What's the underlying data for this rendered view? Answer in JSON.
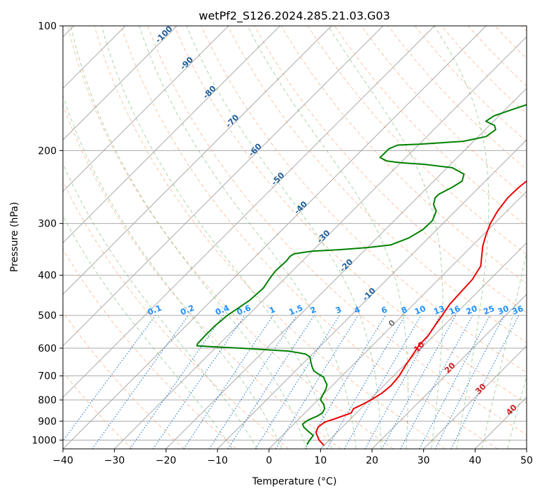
{
  "chart_data": {
    "type": "line",
    "title": "wetPf2_S126.2024.285.21.03.G03",
    "xlabel": "Temperature (°C)",
    "ylabel": "Pressure (hPa)",
    "xlim": [
      -40,
      50
    ],
    "ylim": [
      1050,
      100
    ],
    "y_scale": "log",
    "x_ticks": [
      "−40",
      "−30",
      "−20",
      "−10",
      "0",
      "10",
      "20",
      "30",
      "40",
      "50"
    ],
    "x_tick_values": [
      -40,
      -30,
      -20,
      -10,
      0,
      10,
      20,
      30,
      40,
      50
    ],
    "y_ticks": [
      "100",
      "200",
      "300",
      "400",
      "500",
      "600",
      "700",
      "800",
      "900",
      "1000"
    ],
    "y_tick_values": [
      100,
      200,
      300,
      400,
      500,
      600,
      700,
      800,
      900,
      1000
    ],
    "grid": true,
    "colors": {
      "temperature": "#ee0000",
      "dewpoint": "#008000",
      "dry_adiabat": "#ff9966",
      "moist_adiabat": "#55aa55",
      "mixing_ratio": "#1f77d4",
      "isotherm": "#888888",
      "grid": "#aaaaaa",
      "moist_label": "#1f5f99",
      "mixing_label": "#1e90ff",
      "dry_label": "#cc2222"
    },
    "series": [
      {
        "color": "#ee0000",
        "points": [
          [
            1030,
            10.0
          ],
          [
            1000,
            8.0
          ],
          [
            960,
            6.0
          ],
          [
            930,
            5.3
          ],
          [
            905,
            5.6
          ],
          [
            885,
            7.2
          ],
          [
            860,
            9.0
          ],
          [
            840,
            8.6
          ],
          [
            820,
            9.5
          ],
          [
            800,
            10.3
          ],
          [
            770,
            11.1
          ],
          [
            740,
            11.4
          ],
          [
            700,
            11.1
          ],
          [
            660,
            10.3
          ],
          [
            620,
            9.6
          ],
          [
            590,
            9.0
          ],
          [
            560,
            8.9
          ],
          [
            530,
            8.3
          ],
          [
            500,
            7.7
          ],
          [
            470,
            7.0
          ],
          [
            440,
            6.8
          ],
          [
            410,
            6.6
          ],
          [
            380,
            5.6
          ],
          [
            360,
            3.9
          ],
          [
            340,
            2.1
          ],
          [
            320,
            0.6
          ],
          [
            300,
            -0.8
          ],
          [
            280,
            -1.8
          ],
          [
            260,
            -2.4
          ],
          [
            245,
            -2.3
          ],
          [
            232,
            -1.8
          ],
          [
            222,
            -0.6
          ],
          [
            212,
            1.8
          ],
          [
            200,
            3.5
          ],
          [
            190,
            4.3
          ],
          [
            180,
            5.5
          ],
          [
            170,
            7.5
          ],
          [
            160,
            9.7
          ],
          [
            150,
            12.1
          ],
          [
            140,
            14.8
          ],
          [
            130,
            17.5
          ],
          [
            120,
            19.8
          ],
          [
            112,
            21.2
          ],
          [
            105,
            22.5
          ],
          [
            100,
            23.6
          ]
        ]
      },
      {
        "color": "#008000",
        "points": [
          [
            1025,
            6.5
          ],
          [
            1000,
            6.2
          ],
          [
            975,
            6.0
          ],
          [
            950,
            4.0
          ],
          [
            930,
            2.5
          ],
          [
            915,
            1.7
          ],
          [
            895,
            2.0
          ],
          [
            875,
            3.0
          ],
          [
            860,
            3.4
          ],
          [
            840,
            3.0
          ],
          [
            820,
            2.0
          ],
          [
            800,
            0.5
          ],
          [
            780,
            0.0
          ],
          [
            755,
            -0.5
          ],
          [
            735,
            -1.2
          ],
          [
            720,
            -2.3
          ],
          [
            705,
            -3.3
          ],
          [
            690,
            -5.3
          ],
          [
            680,
            -6.5
          ],
          [
            665,
            -7.6
          ],
          [
            650,
            -8.6
          ],
          [
            630,
            -9.9
          ],
          [
            620,
            -11.3
          ],
          [
            610,
            -15.0
          ],
          [
            605,
            -20.0
          ],
          [
            600,
            -25.0
          ],
          [
            596,
            -30.0
          ],
          [
            592,
            -34.0
          ],
          [
            585,
            -34.3
          ],
          [
            560,
            -34.4
          ],
          [
            530,
            -34.4
          ],
          [
            500,
            -34.0
          ],
          [
            480,
            -33.3
          ],
          [
            460,
            -32.6
          ],
          [
            430,
            -32.3
          ],
          [
            405,
            -33.0
          ],
          [
            390,
            -33.3
          ],
          [
            370,
            -33.1
          ],
          [
            360,
            -33.3
          ],
          [
            355,
            -33.0
          ],
          [
            350,
            -30.0
          ],
          [
            347,
            -25.0
          ],
          [
            343,
            -20.0
          ],
          [
            338,
            -16.0
          ],
          [
            325,
            -13.8
          ],
          [
            310,
            -12.7
          ],
          [
            295,
            -12.6
          ],
          [
            280,
            -13.7
          ],
          [
            270,
            -15.5
          ],
          [
            260,
            -16.5
          ],
          [
            255,
            -16.5
          ],
          [
            245,
            -15.2
          ],
          [
            237,
            -14.5
          ],
          [
            228,
            -15.5
          ],
          [
            220,
            -19.0
          ],
          [
            216,
            -25.0
          ],
          [
            214,
            -30.0
          ],
          [
            212,
            -33.0
          ],
          [
            208,
            -35.0
          ],
          [
            198,
            -35.0
          ],
          [
            194,
            -34.0
          ],
          [
            193,
            -30.0
          ],
          [
            190,
            -22.0
          ],
          [
            185,
            -18.5
          ],
          [
            178,
            -18.0
          ],
          [
            174,
            -19.0
          ],
          [
            170,
            -21.5
          ],
          [
            165,
            -21.0
          ],
          [
            160,
            -19.0
          ],
          [
            150,
            -14.5
          ],
          [
            140,
            -12.5
          ],
          [
            130,
            -10.7
          ],
          [
            120,
            -8.5
          ],
          [
            110,
            -6.1
          ],
          [
            103,
            -4.6
          ],
          [
            100,
            -4.0
          ]
        ]
      }
    ],
    "mixing_ratio_labels": [
      "0.1",
      "0.2",
      "0.4",
      "0.6",
      "1",
      "1.5",
      "2",
      "3",
      "4",
      "6",
      "8",
      "10",
      "13",
      "16",
      "20",
      "25",
      "30",
      "36"
    ],
    "mixing_ratio_values": [
      0.1,
      0.2,
      0.4,
      0.6,
      1,
      1.5,
      2,
      3,
      4,
      6,
      8,
      10,
      13,
      16,
      20,
      25,
      30,
      36
    ],
    "moist_adiabat_labels": [
      "-100",
      "-90",
      "-80",
      "-70",
      "-60",
      "-50",
      "-40",
      "-30",
      "-20",
      "-10",
      "0"
    ],
    "moist_adiabat_values": [
      -100,
      -90,
      -80,
      -70,
      -60,
      -50,
      -40,
      -30,
      -20,
      -10,
      0
    ],
    "dry_adiabat_labels": [
      "10",
      "20",
      "30",
      "40"
    ],
    "dry_adiabat_values": [
      10,
      20,
      30,
      40
    ]
  }
}
